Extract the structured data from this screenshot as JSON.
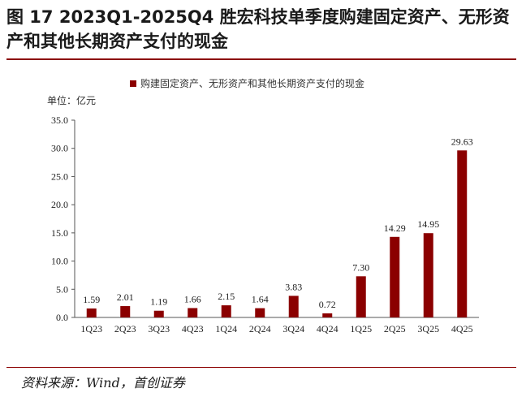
{
  "figure": {
    "title": "图 17 2023Q1-2025Q4 胜宏科技单季度购建固定资产、无形资产和其他长期资产支付的现金",
    "source": "资料来源：Wind，首创证券"
  },
  "colors": {
    "bar": "#8B0000",
    "rule": "#8B0000",
    "axis": "#555555"
  },
  "chart_data": {
    "type": "bar",
    "unit_label": "单位：亿元",
    "categories": [
      "1Q23",
      "2Q23",
      "3Q23",
      "4Q23",
      "1Q24",
      "2Q24",
      "3Q24",
      "4Q24",
      "1Q25",
      "2Q25",
      "3Q25",
      "4Q25"
    ],
    "series": [
      {
        "name": "购建固定资产、无形资产和其他长期资产支付的现金",
        "values": [
          1.59,
          2.01,
          1.19,
          1.66,
          2.15,
          1.64,
          3.83,
          0.72,
          7.3,
          14.29,
          14.95,
          29.63
        ],
        "labels": [
          "1.59",
          "2.01",
          "1.19",
          "1.66",
          "2.15",
          "1.64",
          "3.83",
          "0.72",
          "7.30",
          "14.29",
          "14.95",
          "29.63"
        ]
      }
    ],
    "ylim": [
      0,
      35
    ],
    "yticks": [
      "0.0",
      "5.0",
      "10.0",
      "15.0",
      "20.0",
      "25.0",
      "30.0",
      "35.0"
    ],
    "legend_position": "top",
    "grid": false
  }
}
